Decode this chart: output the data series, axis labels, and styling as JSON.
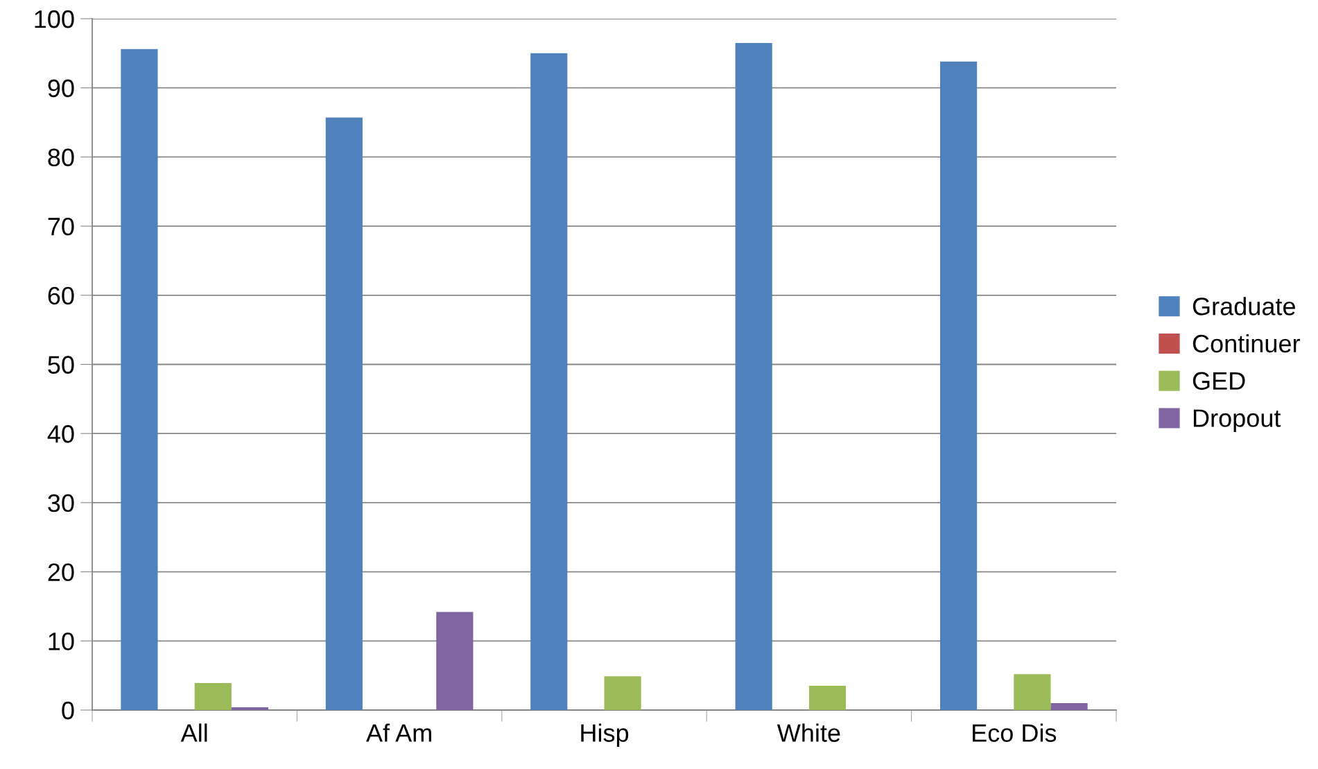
{
  "chart_data": {
    "type": "bar",
    "categories": [
      "All",
      "Af Am",
      "Hisp",
      "White",
      "Eco Dis"
    ],
    "series": [
      {
        "name": "Graduate",
        "color": "#4f81bd",
        "values": [
          95.6,
          85.7,
          95.0,
          96.5,
          93.8
        ]
      },
      {
        "name": "Continuer",
        "color": "#c0504d",
        "values": [
          0,
          0,
          0,
          0,
          0
        ]
      },
      {
        "name": "GED",
        "color": "#9bbb59",
        "values": [
          3.9,
          0,
          4.9,
          3.5,
          5.2
        ]
      },
      {
        "name": "Dropout",
        "color": "#8064a2",
        "values": [
          0.4,
          14.2,
          0,
          0,
          1.0
        ]
      }
    ],
    "ylim": [
      0,
      100
    ],
    "yticks": [
      0,
      10,
      20,
      30,
      40,
      50,
      60,
      70,
      80,
      90,
      100
    ],
    "grid": "y",
    "legend": "right"
  }
}
